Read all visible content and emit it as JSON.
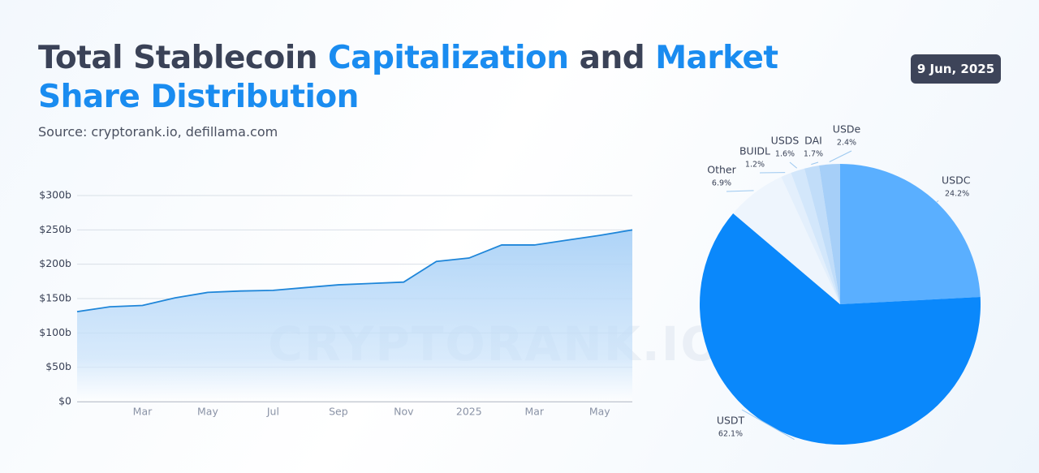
{
  "header": {
    "title": [
      {
        "text": "Total Stablecoin",
        "accent": false
      },
      {
        "text": "Capitalization",
        "accent": true
      },
      {
        "text": "and",
        "accent": false
      },
      {
        "text": "Market Share",
        "accent": true
      },
      {
        "text": "Distribution",
        "accent": true
      }
    ],
    "source": "Source: cryptorank.io, defillama.com",
    "date": "9 Jun, 2025"
  },
  "chart_data": [
    {
      "type": "area",
      "watermark": "CRYPTORANK.IO",
      "color": "#1f86d9",
      "categories": [
        null,
        null,
        "Mar",
        null,
        "May",
        null,
        "Jul",
        null,
        "Sep",
        null,
        "Nov",
        null,
        "2025",
        null,
        "Mar",
        null,
        "May",
        null
      ],
      "values": [
        131,
        138,
        140,
        151,
        159,
        161,
        162,
        166,
        170,
        172,
        174,
        204,
        209,
        228,
        228,
        235,
        242,
        250
      ],
      "ylim": [
        0,
        300
      ],
      "yticks": [
        {
          "value": 0,
          "label": "$0"
        },
        {
          "value": 50,
          "label": "$50b"
        },
        {
          "value": 100,
          "label": "$100b"
        },
        {
          "value": 150,
          "label": "$150b"
        },
        {
          "value": 200,
          "label": "$200b"
        },
        {
          "value": 250,
          "label": "$250b"
        },
        {
          "value": 300,
          "label": "$300b"
        }
      ],
      "grid": true
    },
    {
      "type": "pie",
      "categories": [
        "USDC",
        "USDT",
        "Other",
        "BUIDL",
        "USDS",
        "DAI",
        "USDe"
      ],
      "values": [
        24.2,
        62.1,
        6.9,
        1.2,
        1.6,
        1.7,
        2.4
      ],
      "value_labels": [
        "24.2%",
        "62.1%",
        "6.9%",
        "1.2%",
        "1.6%",
        "1.7%",
        "2.4%"
      ],
      "colors": [
        "#5aafff",
        "#0a88fb",
        "#eef5fd",
        "#e3effc",
        "#d3e7fb",
        "#c1ddf9",
        "#a6cff8"
      ]
    }
  ]
}
